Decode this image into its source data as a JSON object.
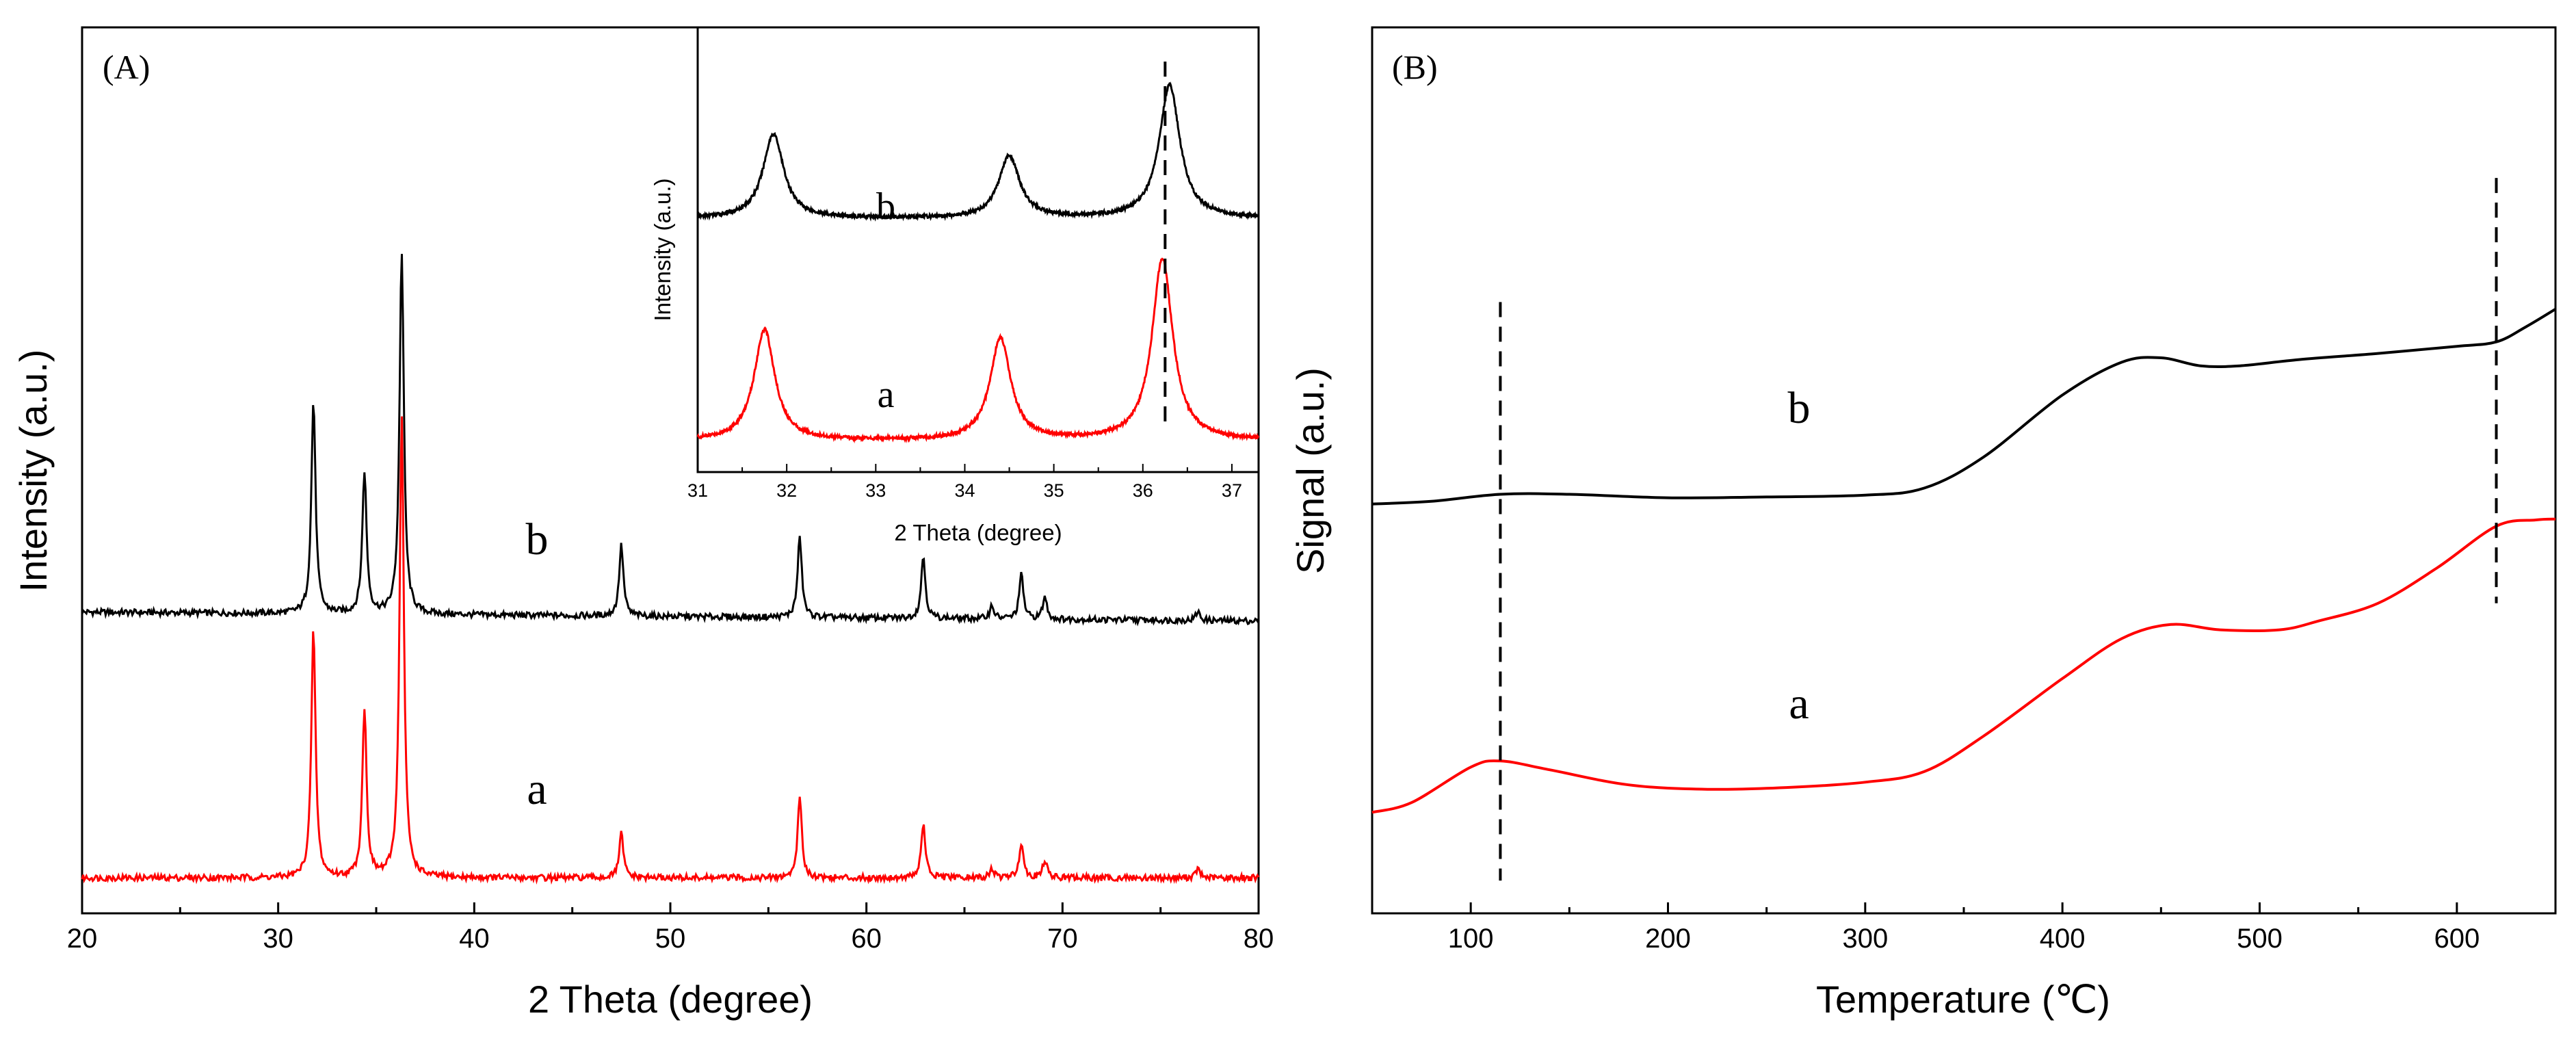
{
  "chart_data": [
    {
      "panel_label": "(A)",
      "type": "line",
      "xlabel": "2 Theta (degree)",
      "ylabel": "Intensity (a.u.)",
      "xlim": [
        20,
        80
      ],
      "xticks": [
        "20",
        "30",
        "40",
        "50",
        "60",
        "70",
        "80"
      ],
      "series": [
        {
          "name": "b",
          "color": "#000000",
          "baseline": 0.34,
          "slope": -0.01,
          "peaks": [
            [
              31.8,
              0.24
            ],
            [
              34.4,
              0.16
            ],
            [
              36.3,
              0.41
            ],
            [
              47.5,
              0.08
            ],
            [
              56.6,
              0.09
            ],
            [
              62.9,
              0.07
            ],
            [
              66.4,
              0.015
            ],
            [
              67.9,
              0.05
            ],
            [
              69.1,
              0.025
            ],
            [
              76.9,
              0.01
            ]
          ]
        },
        {
          "name": "a",
          "color": "#ff0000",
          "baseline": 0.04,
          "slope": 0.0,
          "peaks": [
            [
              31.8,
              0.28
            ],
            [
              34.4,
              0.19
            ],
            [
              36.3,
              0.52
            ],
            [
              47.5,
              0.05
            ],
            [
              56.6,
              0.09
            ],
            [
              62.9,
              0.06
            ],
            [
              66.4,
              0.01
            ],
            [
              67.9,
              0.04
            ],
            [
              69.1,
              0.02
            ],
            [
              76.9,
              0.01
            ]
          ]
        }
      ],
      "inset": {
        "type": "line",
        "xlabel": "2 Theta (degree)",
        "ylabel": "Intensity (a.u.)",
        "xlim": [
          31,
          37.3
        ],
        "xticks": [
          "31",
          "32",
          "33",
          "34",
          "35",
          "36",
          "37"
        ],
        "reference_line_x": 36.25,
        "series": [
          {
            "name": "b",
            "color": "#000000",
            "baseline": 0.57,
            "peaks": [
              [
                31.85,
                0.19
              ],
              [
                34.5,
                0.14
              ],
              [
                36.3,
                0.3
              ]
            ]
          },
          {
            "name": "a",
            "color": "#ff0000",
            "baseline": 0.07,
            "peaks": [
              [
                31.75,
                0.25
              ],
              [
                34.4,
                0.23
              ],
              [
                36.22,
                0.41
              ]
            ]
          }
        ]
      }
    },
    {
      "panel_label": "(B)",
      "type": "line",
      "xlabel": "Temperature (℃)",
      "ylabel": "Signal (a.u.)",
      "xlim": [
        50,
        650
      ],
      "xticks": [
        "100",
        "200",
        "300",
        "400",
        "500",
        "600"
      ],
      "reference_lines_x": [
        115,
        620
      ],
      "series": [
        {
          "name": "b",
          "color": "#000000",
          "points": [
            [
              50,
              0.462
            ],
            [
              80,
              0.465
            ],
            [
              115,
              0.473
            ],
            [
              150,
              0.473
            ],
            [
              200,
              0.469
            ],
            [
              250,
              0.47
            ],
            [
              300,
              0.472
            ],
            [
              330,
              0.48
            ],
            [
              360,
              0.515
            ],
            [
              400,
              0.585
            ],
            [
              430,
              0.622
            ],
            [
              450,
              0.627
            ],
            [
              470,
              0.618
            ],
            [
              490,
              0.618
            ],
            [
              520,
              0.625
            ],
            [
              560,
              0.632
            ],
            [
              600,
              0.64
            ],
            [
              620,
              0.645
            ],
            [
              635,
              0.662
            ],
            [
              650,
              0.682
            ]
          ]
        },
        {
          "name": "a",
          "color": "#ff0000",
          "points": [
            [
              50,
              0.114
            ],
            [
              70,
              0.125
            ],
            [
              100,
              0.165
            ],
            [
              115,
              0.172
            ],
            [
              140,
              0.162
            ],
            [
              180,
              0.145
            ],
            [
              220,
              0.14
            ],
            [
              260,
              0.142
            ],
            [
              300,
              0.148
            ],
            [
              330,
              0.16
            ],
            [
              360,
              0.2
            ],
            [
              400,
              0.265
            ],
            [
              430,
              0.31
            ],
            [
              455,
              0.326
            ],
            [
              480,
              0.32
            ],
            [
              510,
              0.32
            ],
            [
              530,
              0.33
            ],
            [
              560,
              0.35
            ],
            [
              590,
              0.39
            ],
            [
              620,
              0.437
            ],
            [
              640,
              0.444
            ],
            [
              650,
              0.445
            ]
          ]
        }
      ]
    }
  ]
}
